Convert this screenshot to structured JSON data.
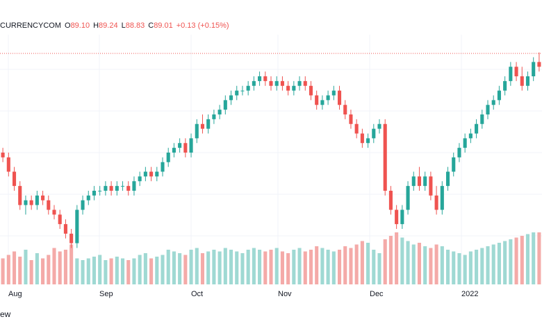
{
  "header": {
    "symbol": "CURRENCYCOM",
    "open_key": "O",
    "open": "89.10",
    "high_key": "H",
    "high": "89.24",
    "low_key": "L",
    "low": "88.83",
    "close_key": "C",
    "close": "89.01",
    "change": "+0.13 (+0.15%)"
  },
  "footer": {
    "text": "ew"
  },
  "colors": {
    "up": "#26a69a",
    "down": "#ef5350",
    "up_vol": "#9fd9d3",
    "down_vol": "#f4aaa8",
    "grid": "#f0f3fa",
    "axis_text": "#131722"
  },
  "chart_data": {
    "type": "candlestick",
    "title": "",
    "x_tick_labels": [
      "Aug",
      "Sep",
      "Oct",
      "Nov",
      "Dec",
      "2022"
    ],
    "price_range": [
      55,
      95
    ],
    "last_price_line": 89.01,
    "series": [
      {
        "name": "price",
        "ohlc": [
          [
            71,
            72,
            69,
            70
          ],
          [
            70,
            71,
            66,
            67
          ],
          [
            67,
            68,
            63,
            64
          ],
          [
            64,
            65,
            59,
            60
          ],
          [
            60,
            62,
            58,
            61
          ],
          [
            61,
            62,
            59,
            60
          ],
          [
            60,
            63,
            59,
            62
          ],
          [
            62,
            63,
            60,
            61
          ],
          [
            61,
            62,
            58,
            59
          ],
          [
            59,
            60,
            57,
            58
          ],
          [
            58,
            59,
            55,
            56
          ],
          [
            56,
            57,
            53,
            54
          ],
          [
            54,
            55,
            51,
            52
          ],
          [
            52,
            60,
            51,
            59
          ],
          [
            59,
            62,
            58,
            61
          ],
          [
            61,
            63,
            60,
            62
          ],
          [
            62,
            64,
            61,
            63
          ],
          [
            63,
            64,
            62,
            63
          ],
          [
            63,
            65,
            62,
            64
          ],
          [
            64,
            65,
            62,
            63
          ],
          [
            63,
            65,
            62,
            64
          ],
          [
            64,
            65,
            63,
            64
          ],
          [
            64,
            65,
            62,
            63
          ],
          [
            63,
            66,
            62,
            65
          ],
          [
            65,
            67,
            64,
            66
          ],
          [
            66,
            68,
            65,
            67
          ],
          [
            67,
            68,
            65,
            66
          ],
          [
            66,
            68,
            65,
            67
          ],
          [
            67,
            70,
            66,
            69
          ],
          [
            69,
            72,
            68,
            71
          ],
          [
            71,
            73,
            70,
            72
          ],
          [
            72,
            74,
            71,
            73
          ],
          [
            73,
            74,
            70,
            71
          ],
          [
            71,
            75,
            70,
            74
          ],
          [
            74,
            78,
            73,
            77
          ],
          [
            77,
            79,
            75,
            76
          ],
          [
            76,
            79,
            75,
            78
          ],
          [
            78,
            80,
            77,
            79
          ],
          [
            79,
            81,
            78,
            80
          ],
          [
            80,
            83,
            79,
            82
          ],
          [
            82,
            84,
            81,
            83
          ],
          [
            83,
            85,
            82,
            84
          ],
          [
            84,
            85,
            83,
            84
          ],
          [
            84,
            86,
            83,
            85
          ],
          [
            85,
            87,
            84,
            86
          ],
          [
            86,
            88,
            85,
            87
          ],
          [
            87,
            88,
            85,
            86
          ],
          [
            86,
            87,
            84,
            85
          ],
          [
            85,
            87,
            84,
            86
          ],
          [
            86,
            87,
            84,
            85
          ],
          [
            85,
            86,
            83,
            84
          ],
          [
            84,
            86,
            83,
            85
          ],
          [
            85,
            87,
            84,
            86
          ],
          [
            86,
            87,
            84,
            85
          ],
          [
            85,
            86,
            82,
            83
          ],
          [
            83,
            84,
            80,
            81
          ],
          [
            81,
            83,
            80,
            82
          ],
          [
            82,
            84,
            81,
            83
          ],
          [
            83,
            85,
            82,
            84
          ],
          [
            84,
            85,
            80,
            81
          ],
          [
            81,
            82,
            78,
            79
          ],
          [
            79,
            80,
            76,
            77
          ],
          [
            77,
            78,
            74,
            75
          ],
          [
            75,
            76,
            72,
            73
          ],
          [
            73,
            75,
            72,
            74
          ],
          [
            74,
            77,
            73,
            76
          ],
          [
            76,
            78,
            75,
            77
          ],
          [
            77,
            78,
            62,
            63
          ],
          [
            63,
            64,
            58,
            59
          ],
          [
            59,
            60,
            55,
            56
          ],
          [
            56,
            60,
            55,
            59
          ],
          [
            59,
            65,
            58,
            64
          ],
          [
            64,
            67,
            63,
            66
          ],
          [
            66,
            68,
            63,
            64
          ],
          [
            64,
            67,
            63,
            66
          ],
          [
            66,
            67,
            61,
            62
          ],
          [
            62,
            64,
            58,
            59
          ],
          [
            59,
            65,
            58,
            64
          ],
          [
            64,
            68,
            63,
            67
          ],
          [
            67,
            71,
            66,
            70
          ],
          [
            70,
            73,
            69,
            72
          ],
          [
            72,
            75,
            71,
            74
          ],
          [
            74,
            76,
            73,
            75
          ],
          [
            75,
            78,
            74,
            77
          ],
          [
            77,
            80,
            76,
            79
          ],
          [
            79,
            82,
            78,
            81
          ],
          [
            81,
            83,
            80,
            82
          ],
          [
            82,
            85,
            81,
            84
          ],
          [
            84,
            87,
            83,
            86
          ],
          [
            86,
            90,
            85,
            89
          ],
          [
            89,
            90,
            86,
            87
          ],
          [
            87,
            89,
            84,
            85
          ],
          [
            85,
            88,
            84,
            87
          ],
          [
            87,
            91,
            86,
            90
          ],
          [
            90,
            92,
            88,
            89
          ]
        ]
      },
      {
        "name": "volume",
        "values": [
          30,
          34,
          38,
          32,
          40,
          28,
          36,
          30,
          34,
          42,
          38,
          40,
          46,
          30,
          28,
          30,
          32,
          34,
          28,
          30,
          32,
          30,
          28,
          30,
          34,
          36,
          30,
          32,
          34,
          40,
          38,
          36,
          34,
          40,
          42,
          36,
          38,
          40,
          38,
          42,
          40,
          38,
          36,
          40,
          42,
          40,
          38,
          40,
          42,
          38,
          36,
          40,
          42,
          38,
          40,
          44,
          42,
          40,
          38,
          40,
          44,
          42,
          46,
          50,
          48,
          40,
          36,
          52,
          56,
          60,
          54,
          50,
          46,
          48,
          44,
          42,
          46,
          44,
          40,
          38,
          36,
          34,
          38,
          40,
          42,
          44,
          46,
          48,
          50,
          52,
          54,
          56,
          58,
          60,
          60
        ]
      }
    ]
  }
}
